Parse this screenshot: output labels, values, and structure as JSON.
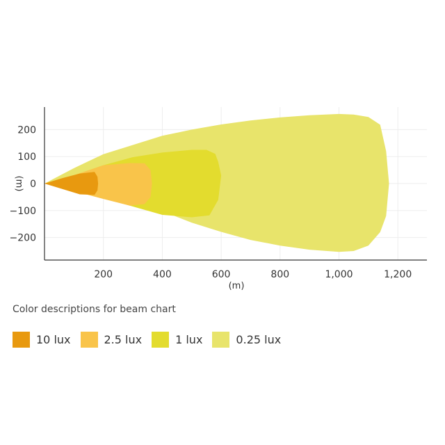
{
  "chart_data": {
    "type": "area",
    "title": "",
    "xlabel": "(m)",
    "ylabel": "(m)",
    "xlim": [
      0,
      1300
    ],
    "ylim": [
      -280,
      290
    ],
    "x_ticks": [
      200,
      400,
      600,
      800,
      1000,
      1200
    ],
    "x_tick_labels": [
      "200",
      "400",
      "600",
      "800",
      "1,000",
      "1,200"
    ],
    "y_ticks": [
      200,
      100,
      0,
      -100,
      -200
    ],
    "y_tick_labels": [
      "200",
      "100",
      "0",
      "−100",
      "−200"
    ],
    "grid": true,
    "legend_position": "bottom",
    "series": [
      {
        "name": "0.25 lux",
        "color": "#e8e46b",
        "points": [
          [
            0,
            0
          ],
          [
            100,
            57
          ],
          [
            200,
            109
          ],
          [
            300,
            143
          ],
          [
            400,
            177
          ],
          [
            500,
            200
          ],
          [
            600,
            219
          ],
          [
            700,
            234
          ],
          [
            800,
            245
          ],
          [
            900,
            253
          ],
          [
            1000,
            258
          ],
          [
            1050,
            256
          ],
          [
            1100,
            247
          ],
          [
            1140,
            218
          ],
          [
            1160,
            120
          ],
          [
            1170,
            0
          ],
          [
            1160,
            -120
          ],
          [
            1140,
            -180
          ],
          [
            1100,
            -230
          ],
          [
            1050,
            -250
          ],
          [
            1000,
            -253
          ],
          [
            900,
            -245
          ],
          [
            800,
            -230
          ],
          [
            700,
            -209
          ],
          [
            600,
            -179
          ],
          [
            500,
            -145
          ],
          [
            400,
            -102
          ],
          [
            300,
            -71
          ],
          [
            200,
            -41
          ],
          [
            100,
            -20
          ]
        ]
      },
      {
        "name": "1 lux",
        "color": "#e3dc2e",
        "points": [
          [
            0,
            0
          ],
          [
            100,
            30
          ],
          [
            200,
            68
          ],
          [
            300,
            98
          ],
          [
            400,
            115
          ],
          [
            500,
            125
          ],
          [
            550,
            125
          ],
          [
            580,
            110
          ],
          [
            590,
            80
          ],
          [
            600,
            30
          ],
          [
            590,
            -60
          ],
          [
            560,
            -118
          ],
          [
            500,
            -125
          ],
          [
            400,
            -116
          ],
          [
            300,
            -85
          ],
          [
            200,
            -54
          ],
          [
            100,
            -24
          ]
        ]
      },
      {
        "name": "2.5 lux",
        "color": "#f9c44a",
        "points": [
          [
            0,
            0
          ],
          [
            100,
            31
          ],
          [
            200,
            68
          ],
          [
            290,
            76
          ],
          [
            340,
            75
          ],
          [
            360,
            50
          ],
          [
            365,
            0
          ],
          [
            360,
            -50
          ],
          [
            340,
            -76
          ],
          [
            290,
            -82
          ],
          [
            200,
            -57
          ],
          [
            100,
            -28
          ]
        ]
      },
      {
        "name": "10 lux",
        "color": "#e8990f",
        "points": [
          [
            0,
            0
          ],
          [
            60,
            20
          ],
          [
            120,
            37
          ],
          [
            170,
            43
          ],
          [
            180,
            25
          ],
          [
            182,
            0
          ],
          [
            180,
            -25
          ],
          [
            170,
            -42
          ],
          [
            120,
            -40
          ],
          [
            60,
            -20
          ]
        ]
      }
    ],
    "legend_order": [
      "10 lux",
      "2.5 lux",
      "1 lux",
      "0.25 lux"
    ]
  },
  "legend": {
    "caption": "Color descriptions for beam chart",
    "items": [
      {
        "label": "10 lux",
        "color": "#e8990f"
      },
      {
        "label": "2.5 lux",
        "color": "#f9c44a"
      },
      {
        "label": "1 lux",
        "color": "#e3dc2e"
      },
      {
        "label": "0.25 lux",
        "color": "#e8e46b"
      }
    ]
  }
}
